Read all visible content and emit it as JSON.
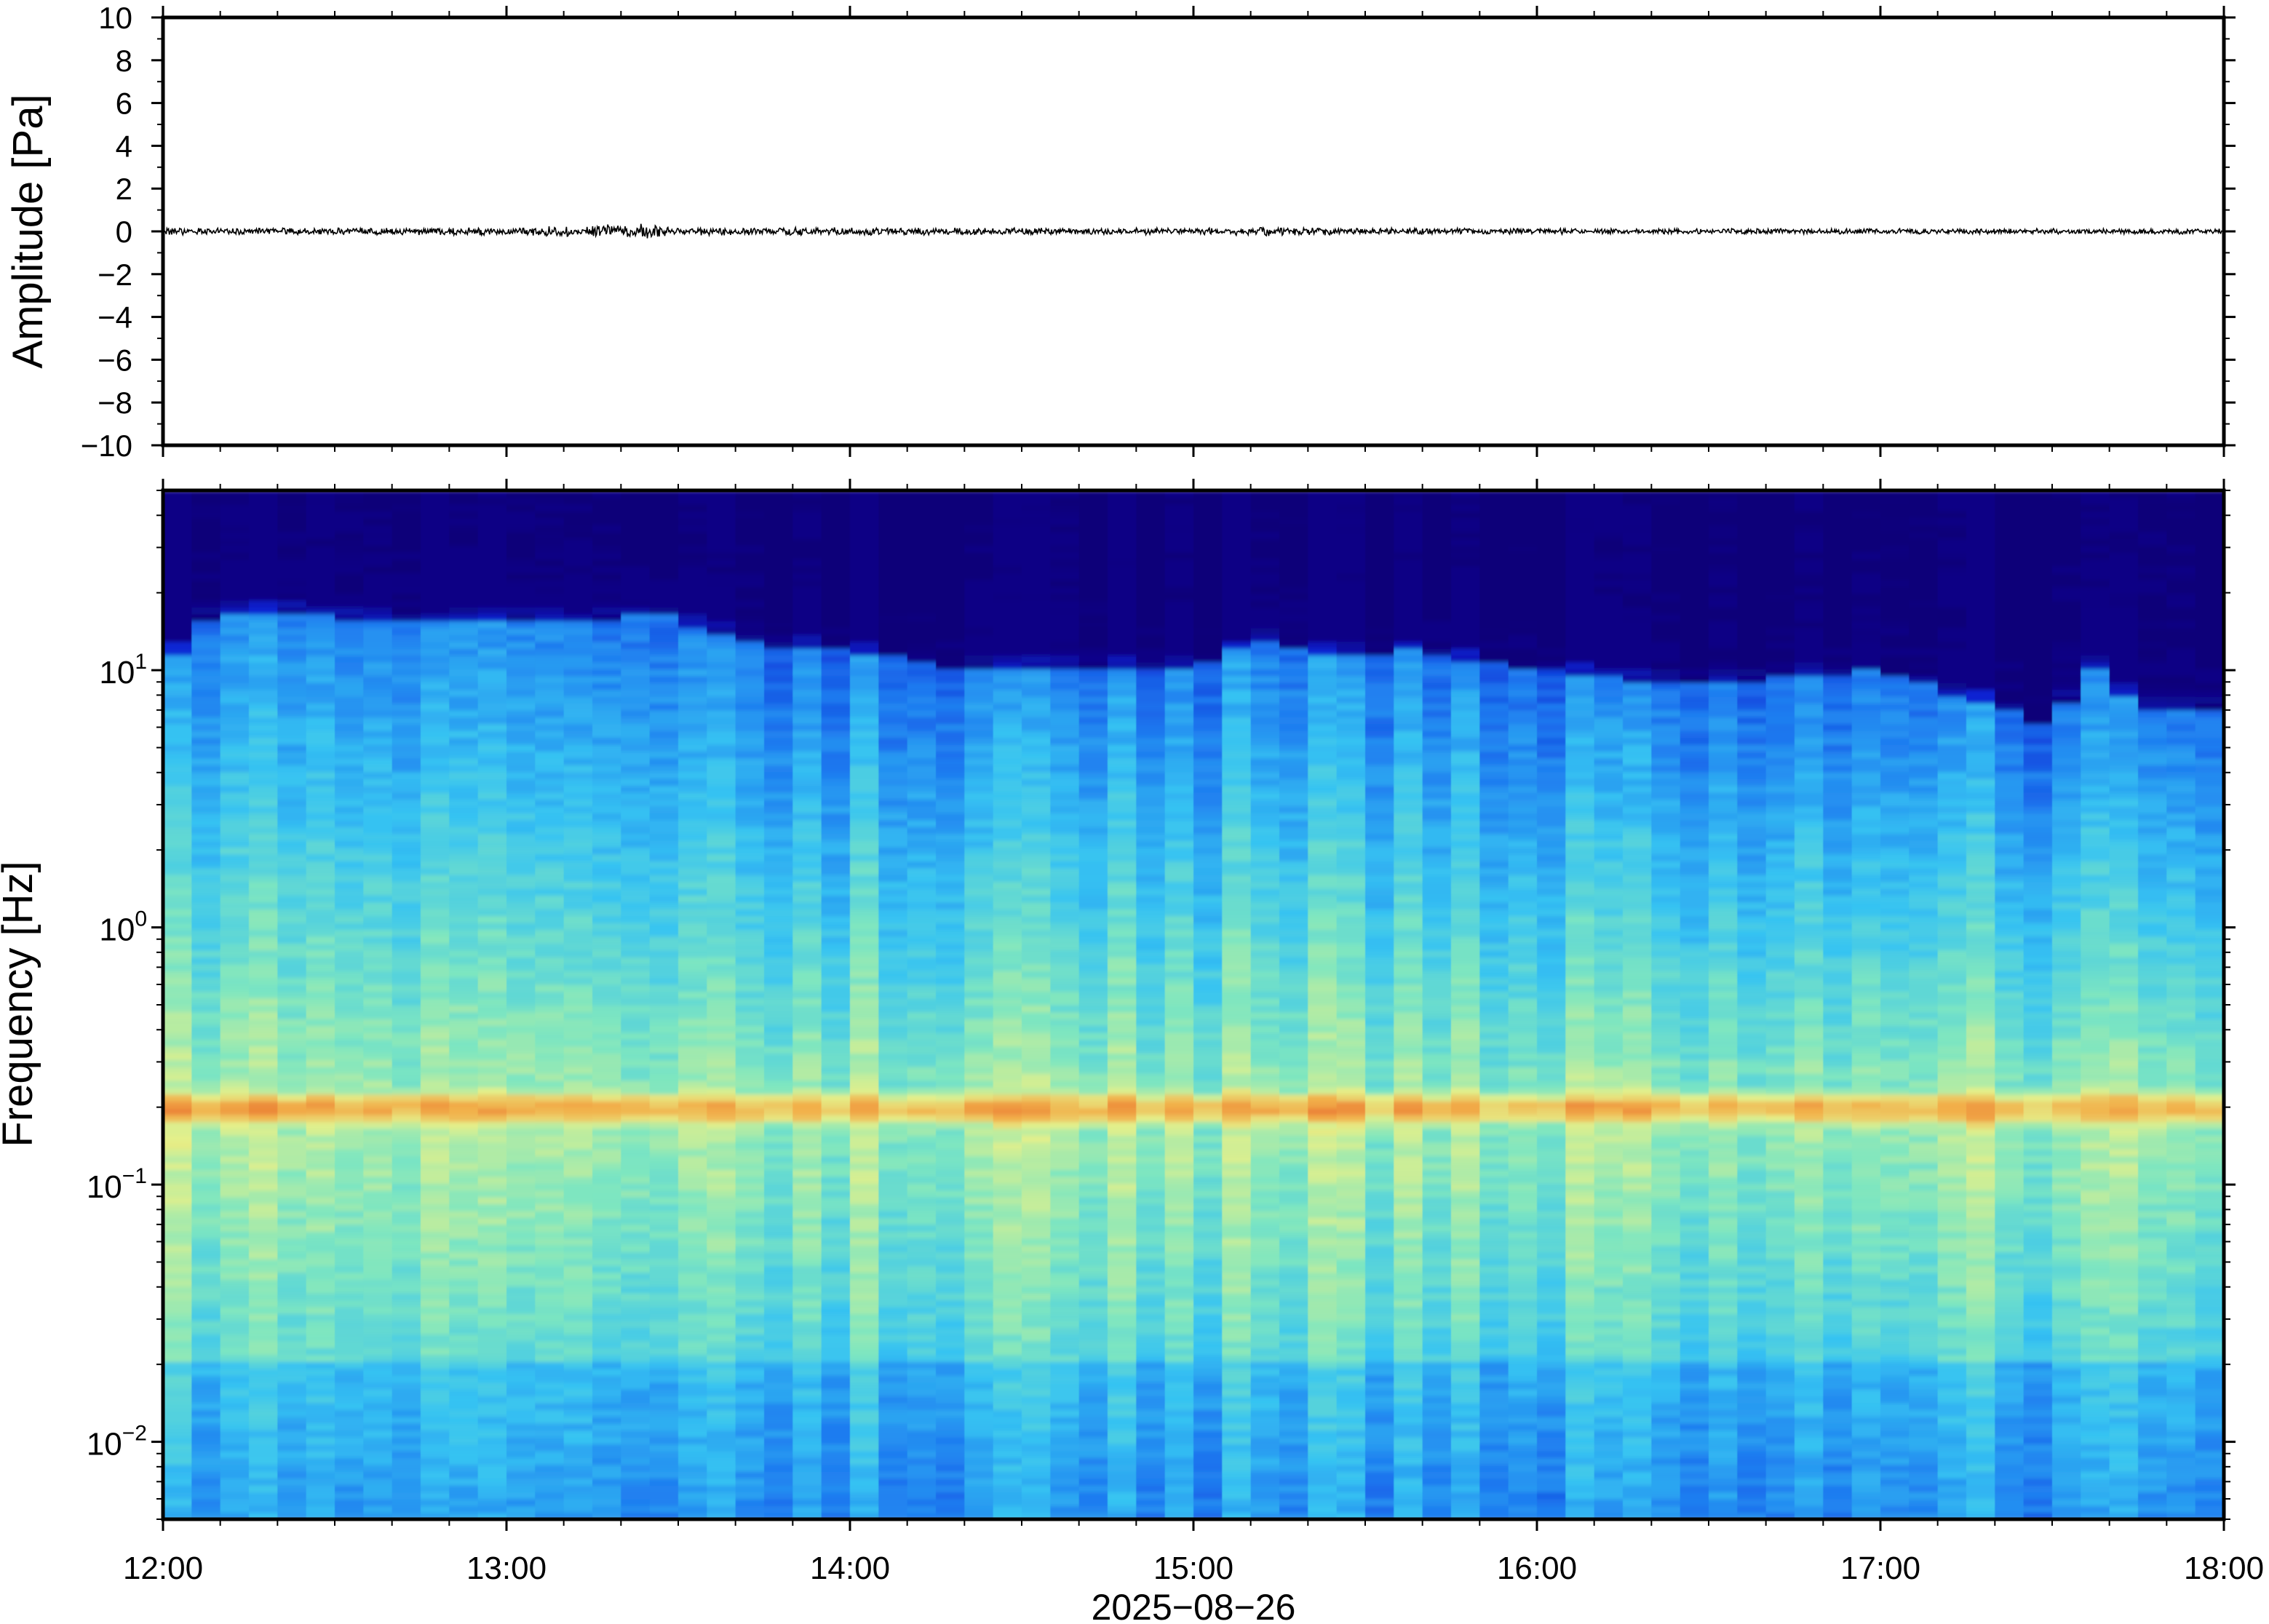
{
  "chart_data": [
    {
      "type": "line",
      "panel": "waveform",
      "ylabel": "Amplitude [Pa]",
      "ylim": [
        -10,
        10
      ],
      "yticks": [
        -10,
        -8,
        -6,
        -4,
        -2,
        0,
        2,
        4,
        6,
        8,
        10
      ],
      "ytick_labels": [
        "−10",
        "−8",
        "−6",
        "−4",
        "−2",
        "0",
        "2",
        "4",
        "6",
        "8",
        "10"
      ],
      "x_range": [
        "2025-08-26 12:00",
        "2025-08-26 18:00"
      ],
      "series": [
        {
          "color": "#000000",
          "description_values": {
            "time_hours": [
              12.0,
              12.5,
              13.0,
              13.3,
              13.4,
              13.5,
              14.0,
              14.5,
              15.0,
              15.2,
              15.5,
              16.0,
              16.5,
              17.0,
              17.5,
              18.0
            ],
            "envelope_pa": [
              0.12,
              0.12,
              0.14,
              0.25,
              0.28,
              0.15,
              0.14,
              0.12,
              0.12,
              0.16,
              0.12,
              0.1,
              0.1,
              0.1,
              0.1,
              0.1
            ]
          }
        }
      ],
      "grid": false
    },
    {
      "type": "heatmap",
      "panel": "spectrogram",
      "xlabel": "2025−08−26",
      "ylabel": "Frequency [Hz]",
      "yscale": "log",
      "ylim": [
        0.005,
        50
      ],
      "yticks": [
        0.01,
        0.1,
        1,
        10
      ],
      "ytick_labels": [
        {
          "base": "10",
          "exp": "−2"
        },
        {
          "base": "10",
          "exp": "−1"
        },
        {
          "base": "10",
          "exp": "0"
        },
        {
          "base": "10",
          "exp": "1"
        }
      ],
      "xticks": [
        "12:00",
        "13:00",
        "14:00",
        "15:00",
        "16:00",
        "17:00",
        "18:00"
      ],
      "x_hours": [
        12,
        13,
        14,
        15,
        16,
        17,
        18
      ],
      "colormap": "jet",
      "colormap_stops": [
        "#0b0079",
        "#0a1fd0",
        "#1e7bf0",
        "#36c3f2",
        "#7ee6c0",
        "#e4f08a",
        "#f2b04a",
        "#e8702e"
      ],
      "upper_cutoff_hz": {
        "time_hours": [
          12.0,
          12.1,
          12.25,
          12.5,
          12.75,
          13.0,
          13.25,
          13.4,
          13.6,
          13.8,
          14.0,
          14.3,
          14.6,
          15.0,
          15.2,
          15.4,
          15.6,
          16.0,
          16.3,
          16.6,
          17.0,
          17.2,
          17.5,
          17.65,
          17.7,
          17.8,
          18.0
        ],
        "freq_hz": [
          9,
          15,
          17,
          16,
          15,
          16,
          15,
          17,
          14,
          12,
          12,
          10,
          10,
          10,
          13,
          11,
          12,
          10,
          9,
          9,
          10,
          8,
          6,
          11,
          8,
          7,
          7
        ]
      },
      "peak_band_hz": [
        0.17,
        0.23
      ],
      "grid": false
    }
  ]
}
